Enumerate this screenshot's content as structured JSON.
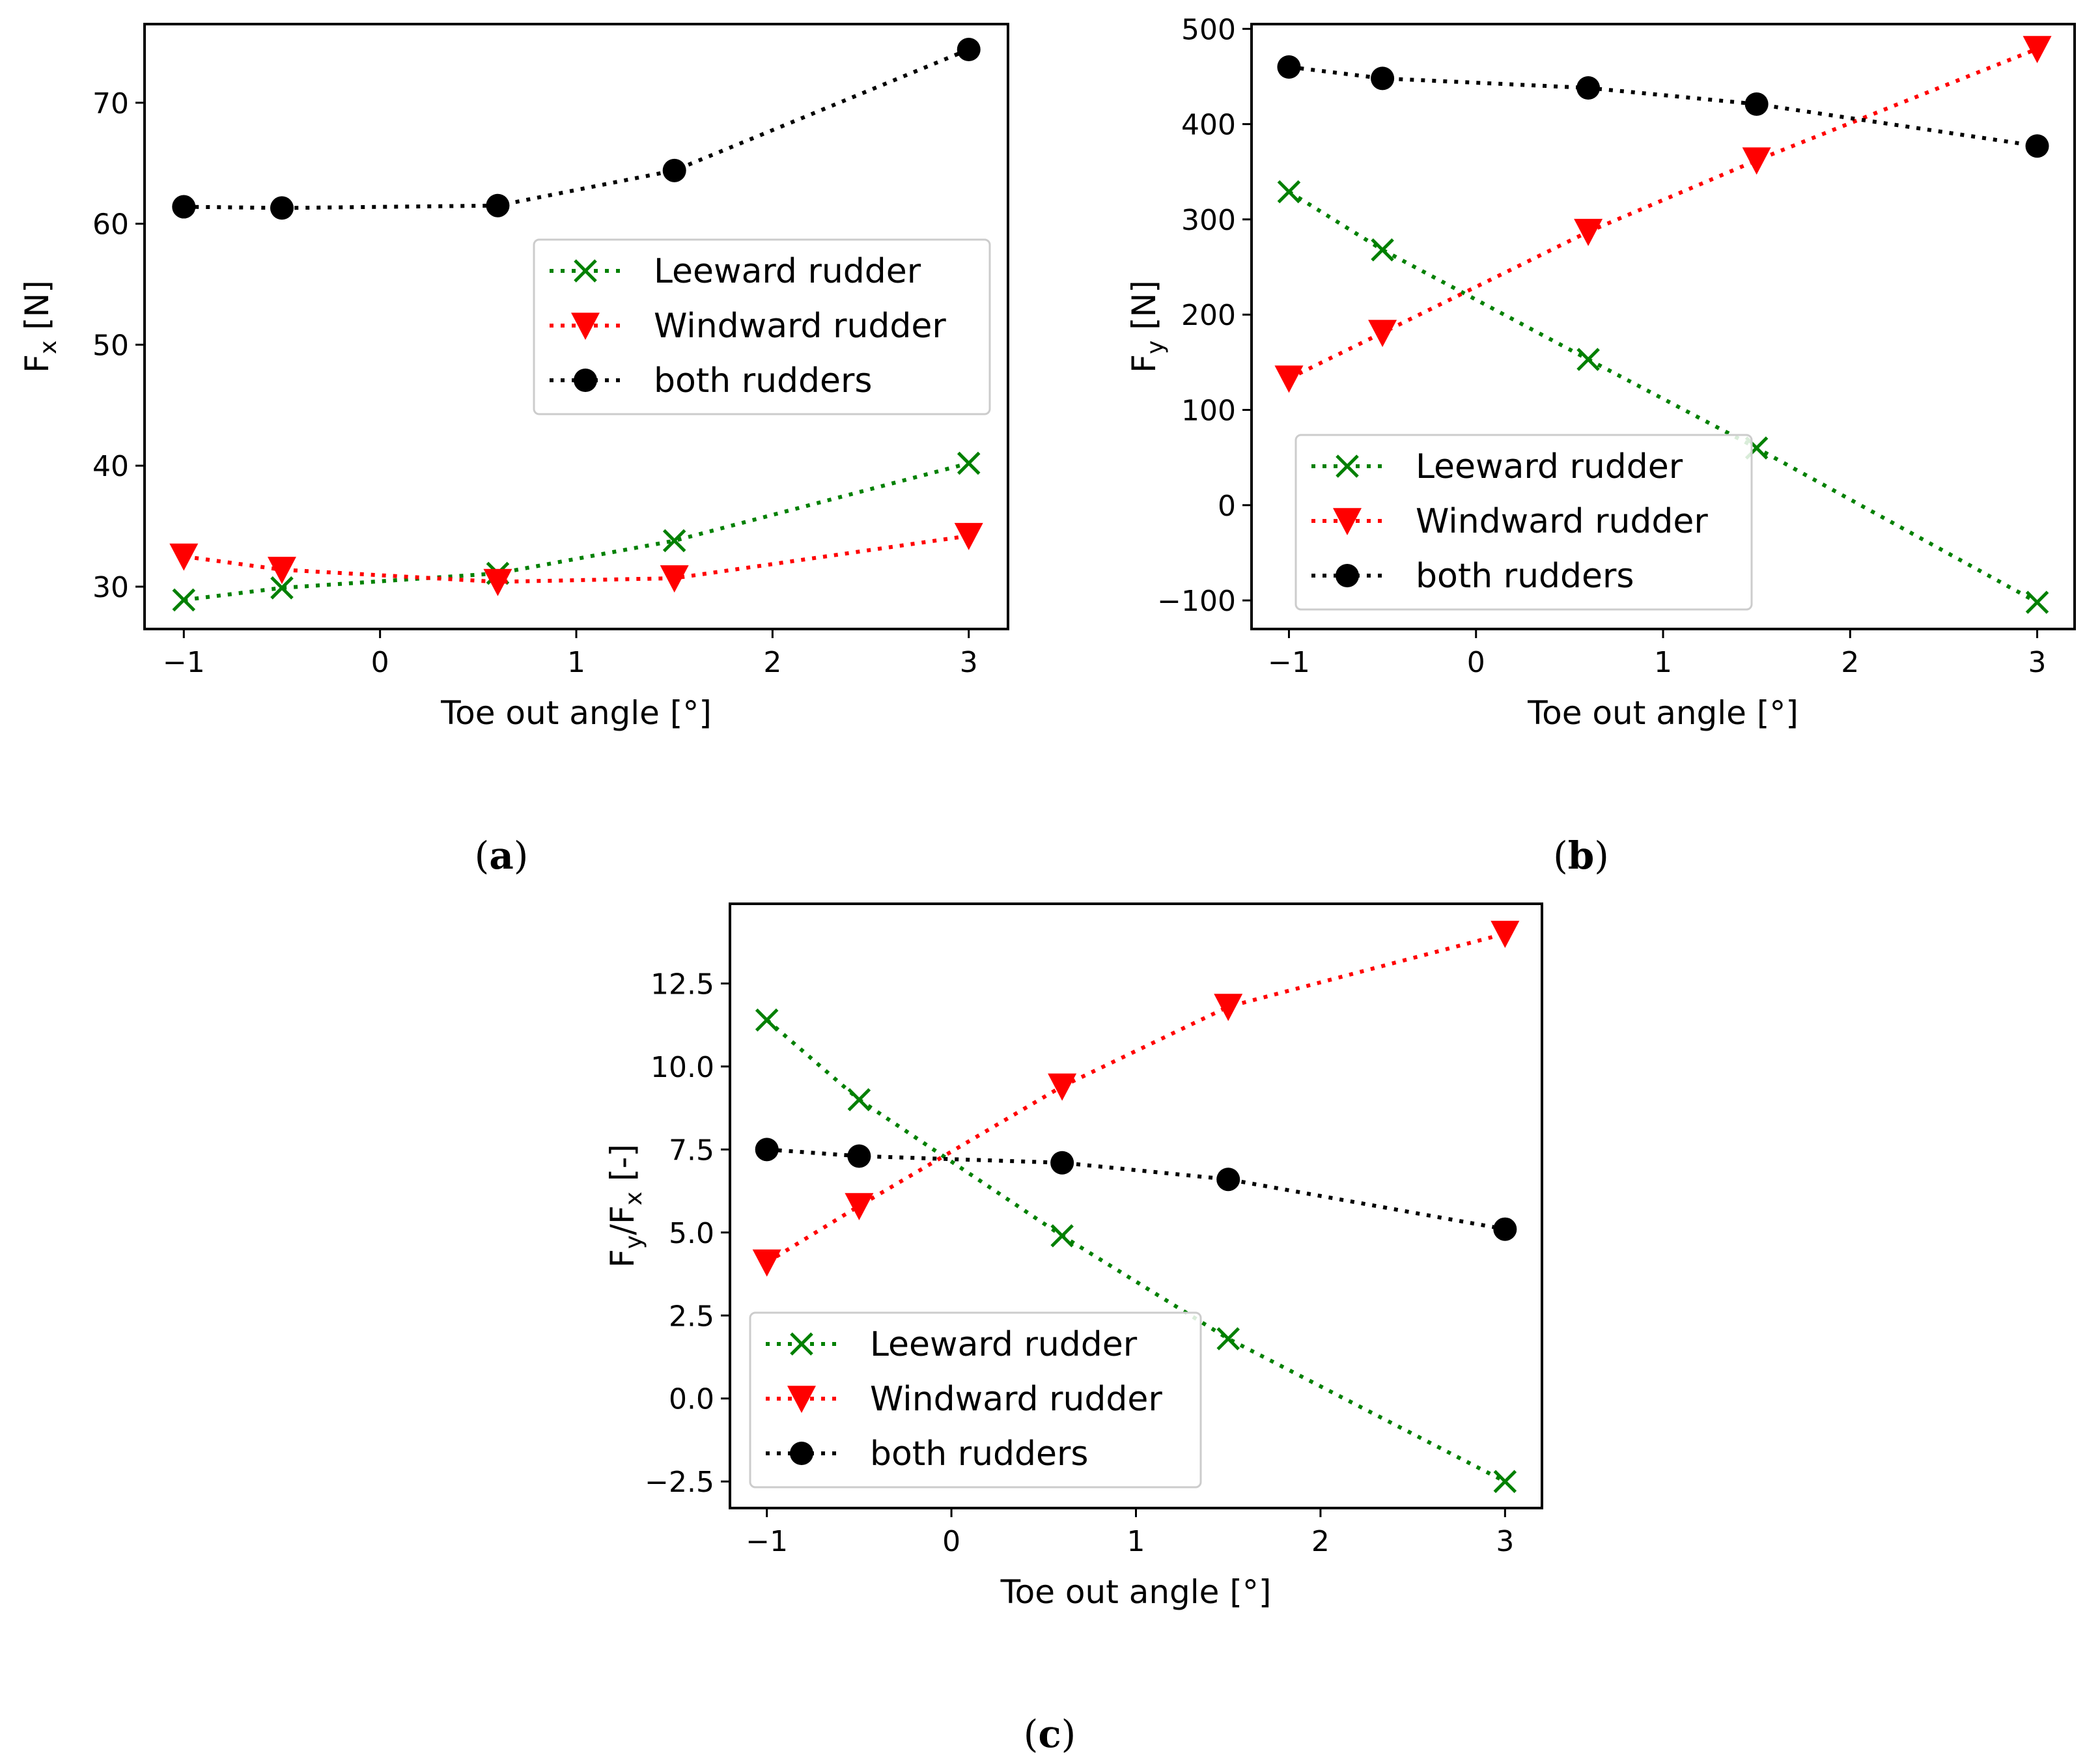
{
  "chart_data": [
    {
      "id": "a",
      "type": "line",
      "caption_open": "(",
      "caption_letter": "a",
      "caption_close": ")",
      "xlabel": "Toe out angle [°]",
      "ylabel_main": "F",
      "ylabel_sub": "x",
      "ylabel_rest": " [N]",
      "xlim": [
        -1.2,
        3.2
      ],
      "ylim": [
        26.5,
        76.5
      ],
      "xticks": [
        -1,
        0,
        1,
        2,
        3
      ],
      "xtick_labels": [
        "−1",
        "0",
        "1",
        "2",
        "3"
      ],
      "yticks": [
        30,
        40,
        50,
        60,
        70
      ],
      "ytick_labels": [
        "30",
        "40",
        "50",
        "60",
        "70"
      ],
      "legend_position": "center-right",
      "x": [
        -1,
        -0.5,
        0.6,
        1.5,
        3
      ],
      "series": [
        {
          "name": "Leeward rudder",
          "marker": "x",
          "color": "#008000",
          "values": [
            28.9,
            29.9,
            31.1,
            33.8,
            40.2
          ]
        },
        {
          "name": "Windward rudder",
          "marker": "triangle-down",
          "color": "#ff0000",
          "values": [
            32.5,
            31.4,
            30.4,
            30.7,
            34.2
          ]
        },
        {
          "name": "both rudders",
          "marker": "circle",
          "color": "#000000",
          "values": [
            61.4,
            61.3,
            61.5,
            64.4,
            74.4
          ]
        }
      ]
    },
    {
      "id": "b",
      "type": "line",
      "caption_open": "(",
      "caption_letter": "b",
      "caption_close": ")",
      "xlabel": "Toe out angle [°]",
      "ylabel_main": "F",
      "ylabel_sub": "y",
      "ylabel_rest": " [N]",
      "xlim": [
        -1.2,
        3.2
      ],
      "ylim": [
        -130,
        505
      ],
      "xticks": [
        -1,
        0,
        1,
        2,
        3
      ],
      "xtick_labels": [
        "−1",
        "0",
        "1",
        "2",
        "3"
      ],
      "yticks": [
        -100,
        0,
        100,
        200,
        300,
        400,
        500
      ],
      "ytick_labels": [
        "−100",
        "0",
        "100",
        "200",
        "300",
        "400",
        "500"
      ],
      "legend_position": "lower-left",
      "x": [
        -1,
        -0.5,
        0.6,
        1.5,
        3
      ],
      "series": [
        {
          "name": "Leeward rudder",
          "marker": "x",
          "color": "#008000",
          "values": [
            329,
            268,
            153,
            60,
            -102
          ]
        },
        {
          "name": "Windward rudder",
          "marker": "triangle-down",
          "color": "#ff0000",
          "values": [
            133,
            181,
            287,
            362,
            479
          ]
        },
        {
          "name": "both rudders",
          "marker": "circle",
          "color": "#000000",
          "values": [
            460,
            448,
            438,
            421,
            377
          ]
        }
      ]
    },
    {
      "id": "c",
      "type": "line",
      "caption_open": "(",
      "caption_letter": "c",
      "caption_close": ")",
      "xlabel": "Toe out angle [°]",
      "ylabel_main": "F",
      "ylabel_sub": "y",
      "ylabel_mid": "/F",
      "ylabel_sub2": "x",
      "ylabel_rest": " [-]",
      "xlim": [
        -1.2,
        3.2
      ],
      "ylim": [
        -3.3,
        14.9
      ],
      "xticks": [
        -1,
        0,
        1,
        2,
        3
      ],
      "xtick_labels": [
        "−1",
        "0",
        "1",
        "2",
        "3"
      ],
      "yticks": [
        -2.5,
        0,
        2.5,
        5,
        7.5,
        10,
        12.5
      ],
      "ytick_labels": [
        "−2.5",
        "0.0",
        "2.5",
        "5.0",
        "7.5",
        "10.0",
        "12.5"
      ],
      "legend_position": "lower-left",
      "x": [
        -1,
        -0.5,
        0.6,
        1.5,
        3
      ],
      "series": [
        {
          "name": "Leeward rudder",
          "marker": "x",
          "color": "#008000",
          "values": [
            11.4,
            9.0,
            4.9,
            1.8,
            -2.5
          ]
        },
        {
          "name": "Windward rudder",
          "marker": "triangle-down",
          "color": "#ff0000",
          "values": [
            4.1,
            5.8,
            9.4,
            11.8,
            14.0
          ]
        },
        {
          "name": "both rudders",
          "marker": "circle",
          "color": "#000000",
          "values": [
            7.5,
            7.3,
            7.1,
            6.6,
            5.1
          ]
        }
      ]
    }
  ]
}
